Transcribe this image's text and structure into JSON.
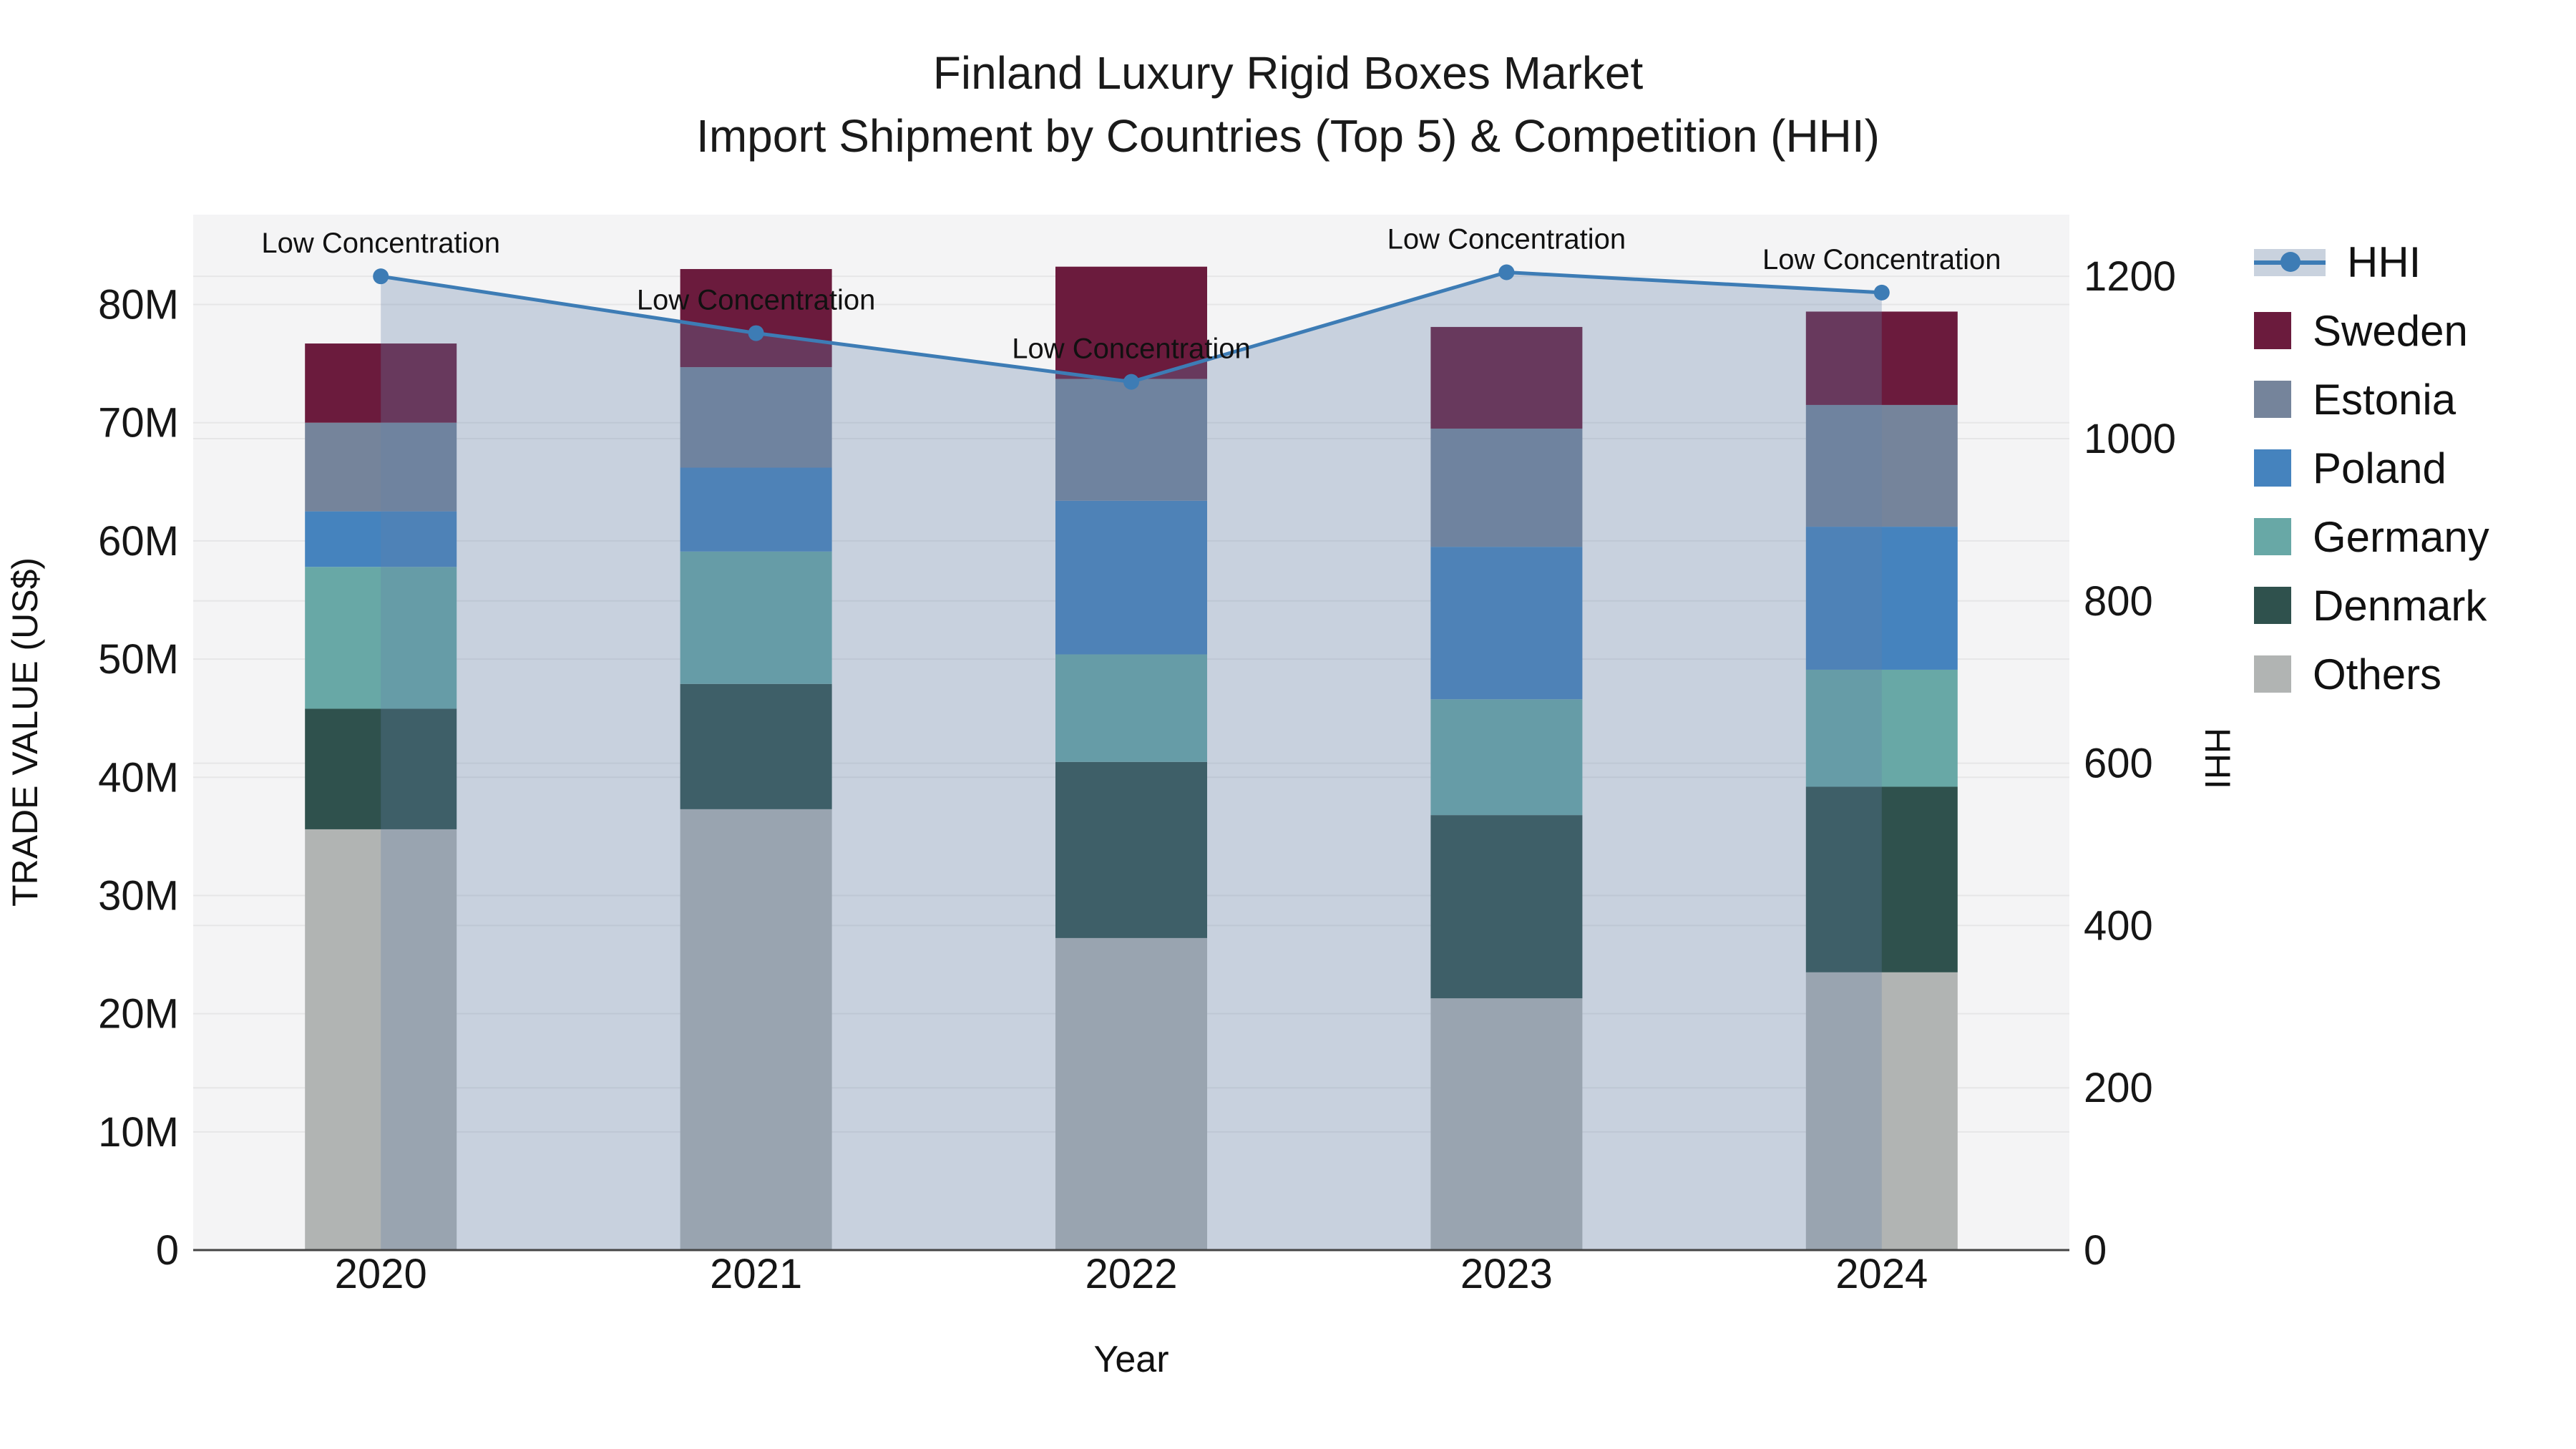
{
  "title": {
    "line1": "Finland Luxury Rigid Boxes Market",
    "line2": "Import Shipment by Countries (Top 5) & Competition (HHI)"
  },
  "axes": {
    "x_title": "Year",
    "y_left_title": "TRADE VALUE (US$)",
    "y_right_title": "HHI",
    "y_left_ticks": [
      {
        "label": "0",
        "value": 0
      },
      {
        "label": "10M",
        "value": 10
      },
      {
        "label": "20M",
        "value": 20
      },
      {
        "label": "30M",
        "value": 30
      },
      {
        "label": "40M",
        "value": 40
      },
      {
        "label": "50M",
        "value": 50
      },
      {
        "label": "60M",
        "value": 60
      },
      {
        "label": "70M",
        "value": 70
      },
      {
        "label": "80M",
        "value": 80
      }
    ],
    "y_right_ticks": [
      {
        "label": "0",
        "value": 0
      },
      {
        "label": "200",
        "value": 200
      },
      {
        "label": "400",
        "value": 400
      },
      {
        "label": "600",
        "value": 600
      },
      {
        "label": "800",
        "value": 800
      },
      {
        "label": "1000",
        "value": 1000
      },
      {
        "label": "1200",
        "value": 1200
      }
    ]
  },
  "legend": [
    {
      "label": "HHI",
      "type": "line",
      "color": "#3d7cb5"
    },
    {
      "label": "Sweden",
      "type": "swatch",
      "color": "#6B1B3D"
    },
    {
      "label": "Estonia",
      "type": "swatch",
      "color": "#75849B"
    },
    {
      "label": "Poland",
      "type": "swatch",
      "color": "#4583BE"
    },
    {
      "label": "Germany",
      "type": "swatch",
      "color": "#68A8A6"
    },
    {
      "label": "Denmark",
      "type": "swatch",
      "color": "#2F514D"
    },
    {
      "label": "Others",
      "type": "swatch",
      "color": "#B1B4B3"
    }
  ],
  "chart_data": {
    "type": "bar+line",
    "title": "Finland Luxury Rigid Boxes Market — Import Shipment by Countries (Top 5) & Competition (HHI)",
    "categories": [
      "2020",
      "2021",
      "2022",
      "2023",
      "2024"
    ],
    "xlabel": "Year",
    "ylabel_left": "TRADE VALUE (US$)",
    "ylabel_right": "HHI",
    "y_left_max": 87.6,
    "y_right_max": 1276,
    "stack_order_note": "series listed bottom-to-top; values in millions US$",
    "series": [
      {
        "name": "Others",
        "color": "#B1B4B3",
        "values": [
          35.6,
          37.3,
          26.4,
          21.3,
          23.5
        ]
      },
      {
        "name": "Denmark",
        "color": "#2F514D",
        "values": [
          10.2,
          10.6,
          14.9,
          15.5,
          15.7
        ]
      },
      {
        "name": "Germany",
        "color": "#68A8A6",
        "values": [
          12.0,
          11.2,
          9.1,
          9.8,
          9.9
        ]
      },
      {
        "name": "Poland",
        "color": "#4583BE",
        "values": [
          4.7,
          7.1,
          13.0,
          12.9,
          12.1
        ]
      },
      {
        "name": "Estonia",
        "color": "#75849B",
        "values": [
          7.5,
          8.5,
          10.3,
          10.0,
          10.3
        ]
      },
      {
        "name": "Sweden",
        "color": "#6B1B3D",
        "values": [
          6.7,
          8.3,
          9.5,
          8.6,
          7.9
        ]
      }
    ],
    "bar_totals": [
      76.7,
      83.0,
      83.2,
      78.1,
      79.4
    ],
    "line": {
      "name": "HHI",
      "values": [
        1200,
        1130,
        1070,
        1205,
        1180
      ],
      "color": "#3d7cb5",
      "fill_color": "rgba(100,130,170,0.30)",
      "axis": "right"
    },
    "annotations": [
      {
        "x": "2020",
        "text": "Low Concentration"
      },
      {
        "x": "2021",
        "text": "Low Concentration"
      },
      {
        "x": "2022",
        "text": "Low Concentration"
      },
      {
        "x": "2023",
        "text": "Low Concentration"
      },
      {
        "x": "2024",
        "text": "Low Concentration"
      }
    ],
    "layout_hints": {
      "legend_position": "right",
      "grid": "on",
      "plot_bg": "#f4f4f5",
      "grid_color": "rgba(0,0,0,0.055)",
      "axis_line_color": "#444444"
    }
  }
}
